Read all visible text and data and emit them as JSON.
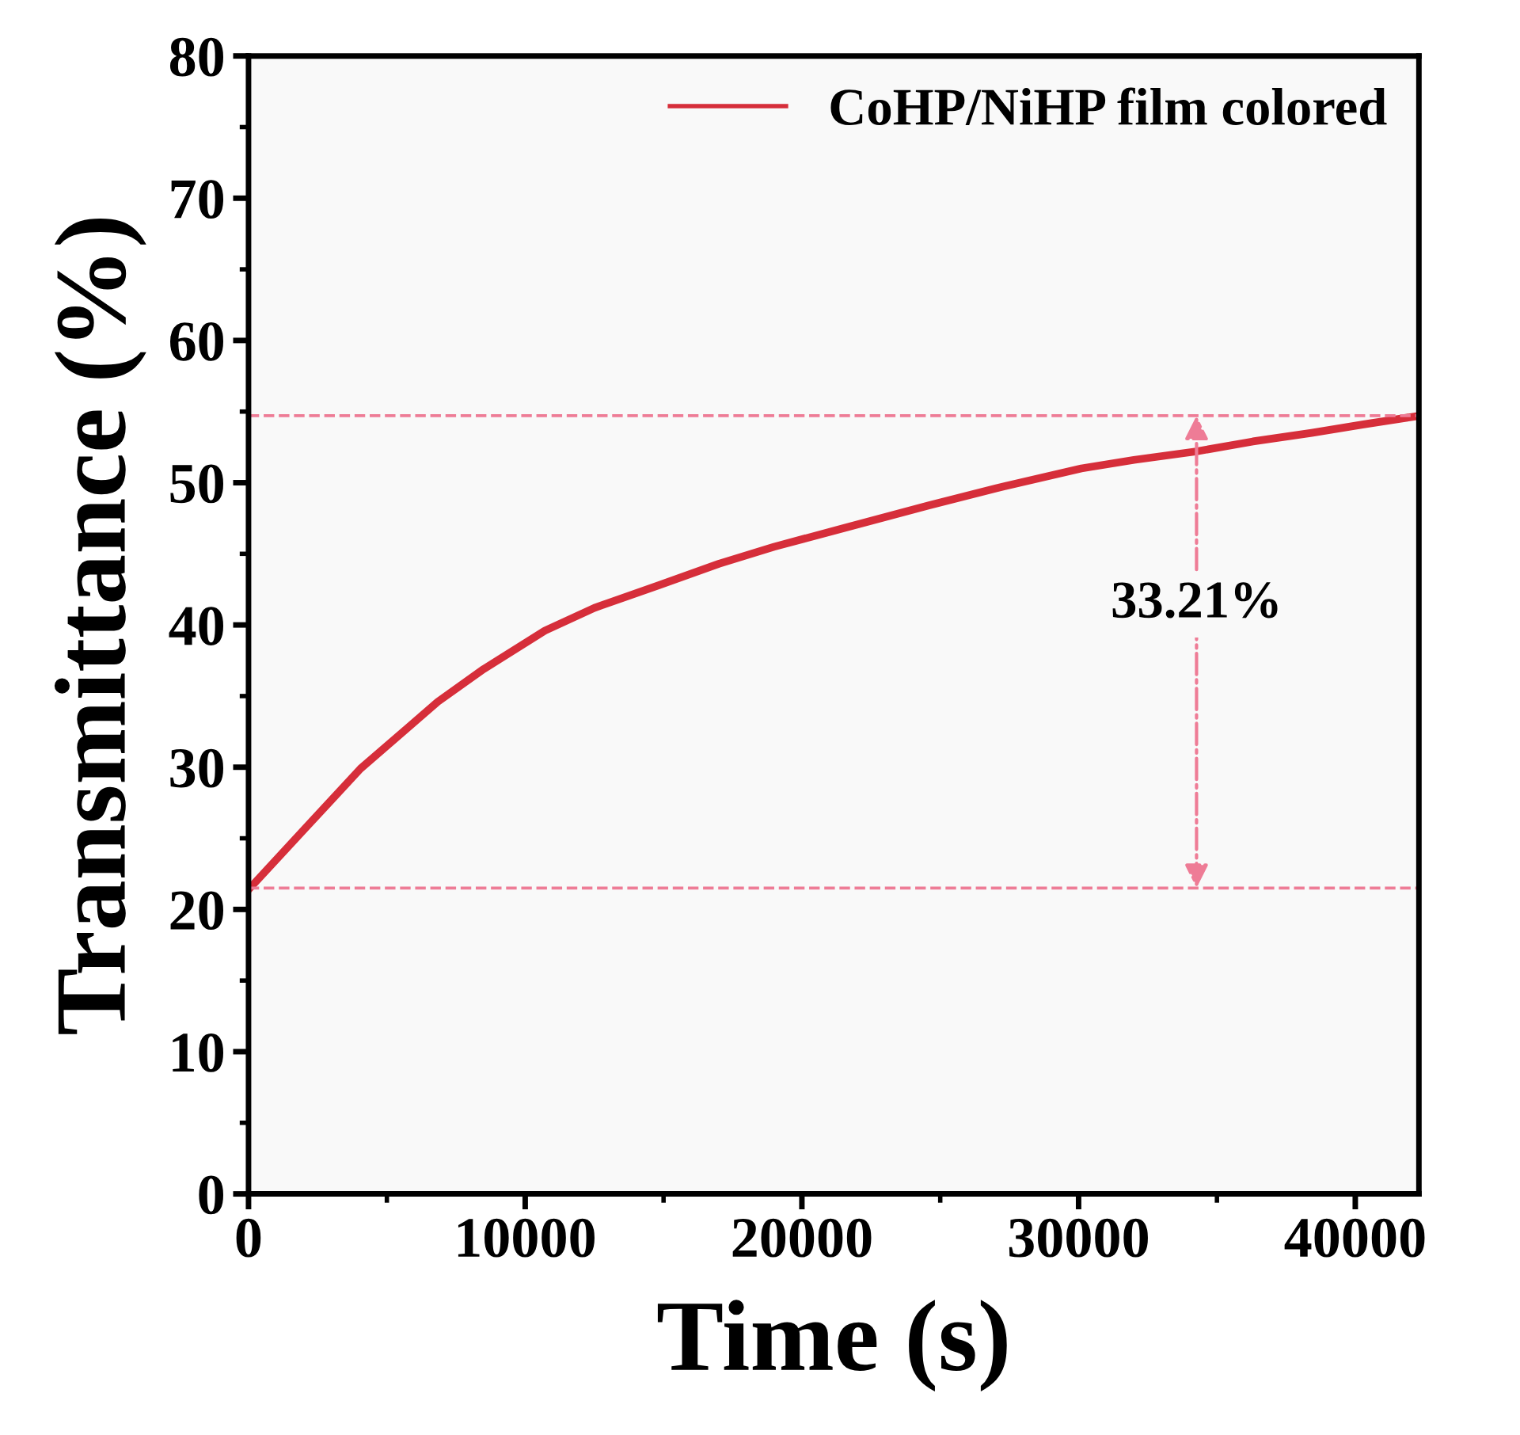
{
  "chart_data": {
    "type": "line",
    "xlabel": "Time (s)",
    "ylabel": "Transmittance (%)",
    "x": [
      50,
      2000,
      4050,
      6840,
      8500,
      10710,
      12500,
      14840,
      17000,
      19000,
      21500,
      24580,
      27000,
      30100,
      32000,
      34260,
      36300,
      38420,
      40300,
      42300
    ],
    "series": [
      {
        "name": "CoHP/NiHP film colored",
        "color": "#d62e3a",
        "values": [
          21.5,
          25.6,
          29.9,
          34.6,
          36.9,
          39.6,
          41.2,
          42.8,
          44.3,
          45.5,
          46.8,
          48.4,
          49.6,
          51.0,
          51.6,
          52.2,
          52.9,
          53.5,
          54.1,
          54.7
        ]
      }
    ],
    "xlim": [
      0,
      42300
    ],
    "xticks": [
      0,
      10000,
      20000,
      30000,
      40000
    ],
    "ylim": [
      0,
      80
    ],
    "yticks": [
      0,
      10,
      20,
      30,
      40,
      50,
      60,
      70,
      80
    ],
    "ref_lines": [
      {
        "axis": "y",
        "value": 54.71,
        "label": null,
        "color": "#ee7c96",
        "line_style": "dashed"
      },
      {
        "axis": "y",
        "value": 21.5,
        "label": null,
        "color": "#ee7c96",
        "line_style": "dashed"
      }
    ],
    "annotations": [
      "33.21%"
    ],
    "legend": "top right",
    "grid": false,
    "marker": "none",
    "line_style": "solid"
  }
}
